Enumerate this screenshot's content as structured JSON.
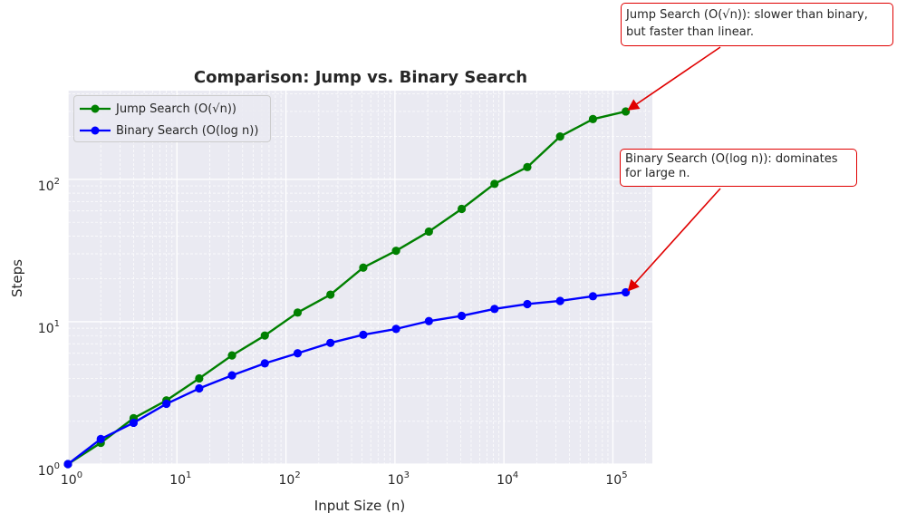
{
  "chart_data": {
    "type": "line",
    "title": "Comparison: Jump vs. Binary Search",
    "xlabel": "Input Size (n)",
    "ylabel": "Steps",
    "xscale": "log",
    "yscale": "log",
    "xlim": [
      1,
      230000
    ],
    "ylim": [
      1,
      420
    ],
    "grid": true,
    "legend_position": "top-left",
    "x_tick_labels": [
      "10^0",
      "10^1",
      "10^2",
      "10^3",
      "10^4",
      "10^5"
    ],
    "y_tick_labels": [
      "10^0",
      "10^1",
      "10^2"
    ],
    "x": [
      1,
      2,
      4,
      8,
      16,
      32,
      64,
      128,
      256,
      512,
      1024,
      2048,
      4096,
      8192,
      16384,
      32768,
      65536,
      131072
    ],
    "series": [
      {
        "name": "Jump Search (O(√n))",
        "color": "#008000",
        "values": [
          1,
          1.41,
          2.1,
          2.8,
          4,
          5.8,
          8,
          11.6,
          15.5,
          24,
          31.5,
          43,
          62,
          93,
          122,
          200,
          265,
          300
        ]
      },
      {
        "name": "Binary Search (O(log n))",
        "color": "#0000ff",
        "values": [
          1,
          1.5,
          1.95,
          2.65,
          3.4,
          4.2,
          5.1,
          6,
          7.1,
          8.1,
          8.9,
          10.1,
          11,
          12.3,
          13.3,
          14,
          15.1,
          16.1
        ]
      }
    ],
    "annotations": [
      {
        "text_line1": "Jump Search (O(√n)): slower than binary,",
        "text_line2": "but faster than linear.",
        "target_x": 131072,
        "target_y": 300
      },
      {
        "text_line1": "Binary Search (O(log n)): dominates",
        "text_line2": "for large n.",
        "target_x": 131072,
        "target_y": 16.1
      }
    ]
  },
  "colors": {
    "plot_bg": "#eaeaf2",
    "grid": "#ffffff",
    "jump": "#008000",
    "binary": "#0000ff",
    "annotation": "#e00000"
  }
}
